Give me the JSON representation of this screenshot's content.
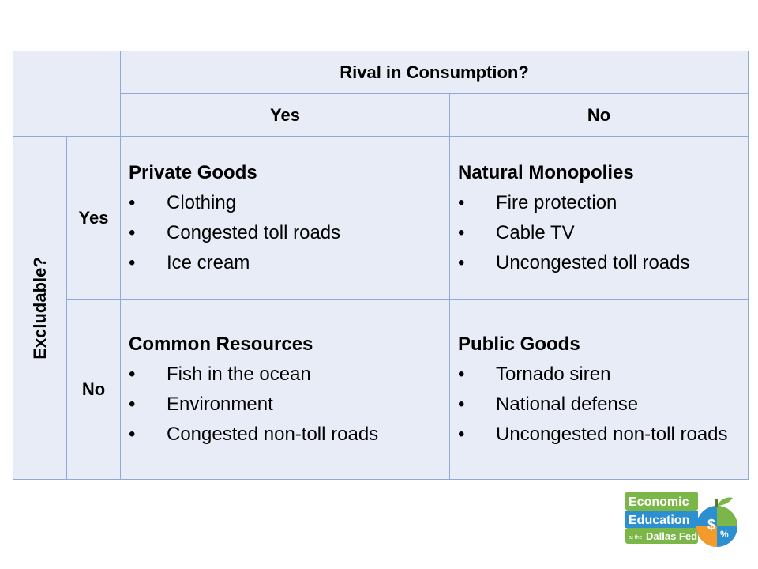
{
  "table": {
    "rival_header": "Rival in Consumption?",
    "rival_yes": "Yes",
    "rival_no": "No",
    "excludable_header": "Excludable?",
    "excludable_yes": "Yes",
    "excludable_no": "No",
    "private_goods": {
      "title": "Private Goods",
      "items": [
        "Clothing",
        "Congested toll roads",
        "Ice cream"
      ]
    },
    "natural_monopolies": {
      "title": "Natural Monopolies",
      "items": [
        "Fire protection",
        "Cable TV",
        "Uncongested toll roads"
      ]
    },
    "common_resources": {
      "title": "Common Resources",
      "items": [
        "Fish in the ocean",
        "Environment",
        "Congested non-toll roads"
      ]
    },
    "public_goods": {
      "title": "Public Goods",
      "items": [
        "Tornado siren",
        "National defense",
        "Uncongested non-toll roads"
      ]
    },
    "bullet": "•"
  },
  "logo": {
    "line1": "Economic",
    "line2": "Education",
    "line3_small": "at the",
    "line3": "Dallas Fed",
    "colors": {
      "green": "#7ab648",
      "blue": "#2b8fd0",
      "orange": "#f29b2a"
    }
  }
}
